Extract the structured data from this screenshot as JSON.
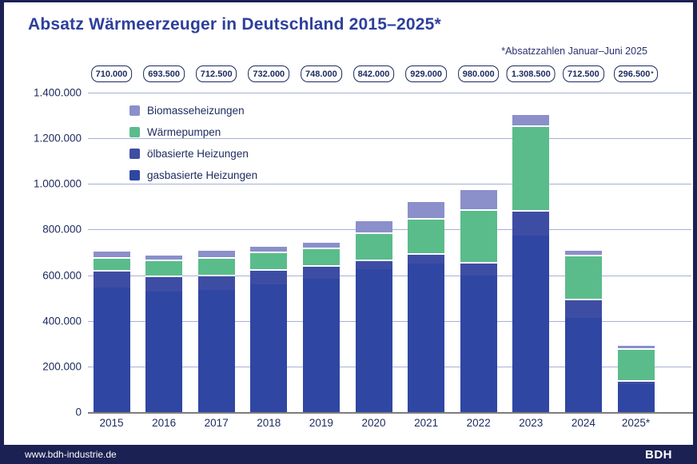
{
  "header": {
    "title": "Absatz Wärmeerzeuger in Deutschland 2015–2025*",
    "footnote": "*Absatzzahlen Januar–Juni 2025"
  },
  "footer": {
    "url": "www.bdh-industrie.de",
    "logo": "BDH"
  },
  "colors": {
    "title": "#2d3f9c",
    "axis_text": "#1c2a5e",
    "gridline": "#a6b0d4",
    "axis_line": "#7d7d7d",
    "badge_border": "#1c2a5e",
    "footer_bg": "#1b2152",
    "gas": "#2f46a2",
    "oil": "#3e4da4",
    "heatpump": "#5abc8b",
    "biomass": "#8b8fca"
  },
  "chart_data": {
    "type": "bar",
    "stacked": true,
    "title": "Absatz Wärmeerzeuger in Deutschland 2015–2025*",
    "footnote": "*Absatzzahlen Januar–Juni 2025",
    "categories": [
      "2015",
      "2016",
      "2017",
      "2018",
      "2019",
      "2020",
      "2021",
      "2022",
      "2023",
      "2024",
      "2025*"
    ],
    "total_labels": [
      "710.000",
      "693.500",
      "712.500",
      "732.000",
      "748.000",
      "842.000",
      "929.000",
      "980.000",
      "1.308.500",
      "712.500",
      "296.500*"
    ],
    "totals": [
      710000,
      693500,
      712500,
      732000,
      748000,
      842000,
      929000,
      980000,
      1308500,
      712500,
      296500
    ],
    "series": [
      {
        "name": "gasbasierte Heizungen",
        "key": "gas",
        "color": "#2f46a2",
        "values": [
          545000,
          528000,
          535000,
          560000,
          583000,
          626000,
          650000,
          600000,
          775000,
          412000,
          121500
        ]
      },
      {
        "name": "ölbasierte Heizungen",
        "key": "oil",
        "color": "#3e4da4",
        "values": [
          78000,
          70500,
          67000,
          68000,
          61000,
          44000,
          47000,
          58500,
          111000,
          84000,
          20000
        ]
      },
      {
        "name": "Wärmepumpen",
        "key": "heatpump",
        "color": "#5abc8b",
        "values": [
          55000,
          70500,
          78000,
          75500,
          78500,
          117000,
          153500,
          231000,
          369000,
          194000,
          137500
        ]
      },
      {
        "name": "Biomasseheizungen",
        "key": "biomass",
        "color": "#8b8fca",
        "values": [
          32000,
          24500,
          32500,
          28500,
          25500,
          55000,
          78500,
          90500,
          53500,
          22500,
          17500
        ]
      }
    ],
    "legend_order_top_to_bottom": [
      "Biomasseheizungen",
      "Wärmepumpen",
      "ölbasierte Heizungen",
      "gasbasierte Heizungen"
    ],
    "ylim": [
      0,
      1400000
    ],
    "ytick_step": 200000,
    "ytick_labels": [
      "0",
      "200.000",
      "400.000",
      "600.000",
      "800.000",
      "1.000.000",
      "1.200.000",
      "1.400.000"
    ],
    "grid": true,
    "legend_position": "top-left-inside"
  }
}
